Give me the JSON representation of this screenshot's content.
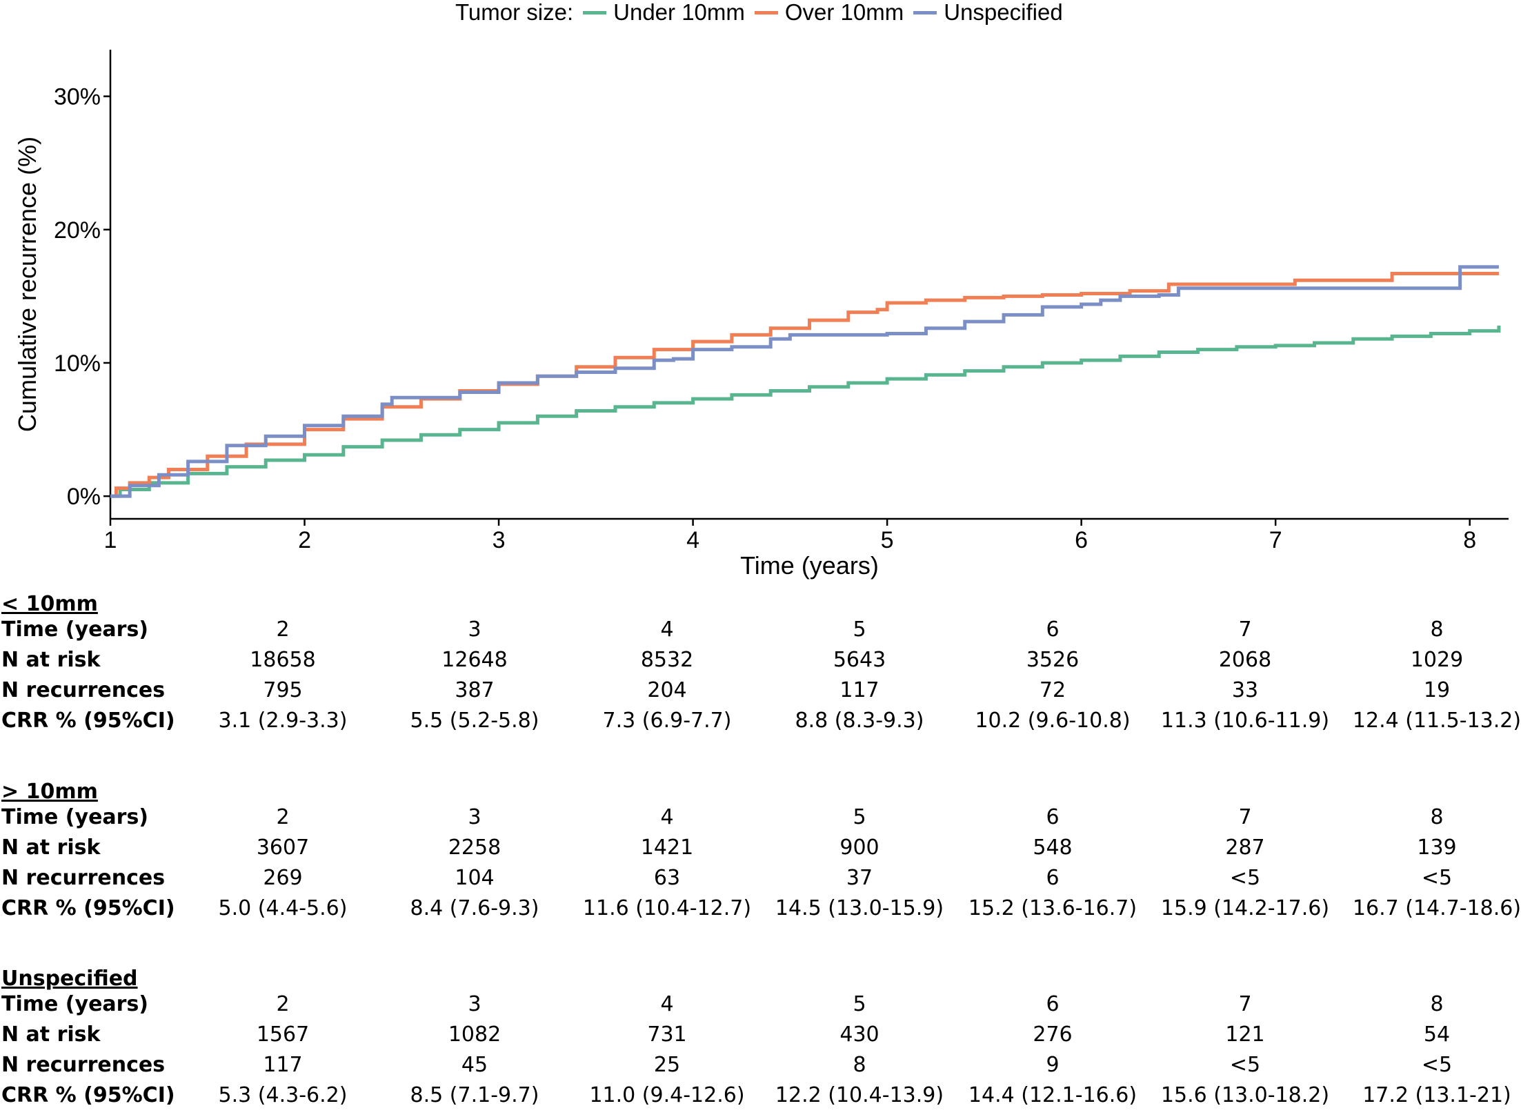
{
  "chart_data": {
    "type": "line",
    "title": "",
    "xlabel": "Time (years)",
    "ylabel": "Cumulative recurrence (%)",
    "xlim": [
      1,
      8.2
    ],
    "ylim": [
      -1.7,
      33.5
    ],
    "xticks": [
      1,
      2,
      3,
      4,
      5,
      6,
      7,
      8
    ],
    "yticks": [
      0,
      10,
      20,
      30
    ],
    "ytick_labels": [
      "0%",
      "10%",
      "20%",
      "30%"
    ],
    "grid": false,
    "legend": {
      "title": "Tumor size:",
      "position": "top"
    },
    "series": [
      {
        "name": "Under 10mm",
        "color": "#58b58f",
        "x": [
          1,
          1.05,
          1.2,
          1.4,
          1.6,
          1.8,
          2,
          2.2,
          2.4,
          2.6,
          2.8,
          3,
          3.2,
          3.4,
          3.6,
          3.8,
          4,
          4.2,
          4.4,
          4.6,
          4.8,
          5,
          5.2,
          5.4,
          5.6,
          5.8,
          6,
          6.2,
          6.4,
          6.6,
          6.8,
          7,
          7.2,
          7.4,
          7.6,
          7.8,
          8,
          8.15
        ],
        "y": [
          0,
          0.5,
          1.0,
          1.7,
          2.2,
          2.7,
          3.1,
          3.7,
          4.2,
          4.6,
          5.0,
          5.5,
          6.0,
          6.4,
          6.7,
          7.0,
          7.3,
          7.6,
          7.9,
          8.2,
          8.5,
          8.8,
          9.1,
          9.4,
          9.7,
          10.0,
          10.2,
          10.5,
          10.8,
          11.0,
          11.2,
          11.3,
          11.5,
          11.8,
          12.0,
          12.2,
          12.4,
          12.8
        ]
      },
      {
        "name": "Over 10mm",
        "color": "#f07f55",
        "x": [
          1,
          1.03,
          1.1,
          1.2,
          1.3,
          1.5,
          1.7,
          2,
          2.2,
          2.4,
          2.6,
          2.8,
          3,
          3.2,
          3.4,
          3.6,
          3.8,
          4,
          4.2,
          4.4,
          4.6,
          4.8,
          4.95,
          5,
          5.2,
          5.4,
          5.6,
          5.8,
          6,
          6.25,
          6.45,
          6.6,
          6.8,
          7,
          7.1,
          7.6,
          7.8,
          8,
          8.15
        ],
        "y": [
          0,
          0.6,
          1.0,
          1.4,
          2.0,
          3.0,
          3.9,
          5.0,
          5.8,
          6.7,
          7.3,
          7.9,
          8.4,
          9.0,
          9.7,
          10.4,
          11.0,
          11.6,
          12.1,
          12.6,
          13.2,
          13.8,
          14.0,
          14.5,
          14.7,
          14.9,
          15.0,
          15.1,
          15.2,
          15.4,
          15.9,
          15.9,
          15.9,
          15.9,
          16.2,
          16.7,
          16.7,
          16.7,
          16.7
        ]
      },
      {
        "name": "Unspecified",
        "color": "#7b8fc6",
        "x": [
          1,
          1.1,
          1.25,
          1.4,
          1.6,
          1.8,
          2,
          2.2,
          2.4,
          2.45,
          2.6,
          2.8,
          3,
          3.2,
          3.4,
          3.6,
          3.8,
          3.9,
          4,
          4.2,
          4.4,
          4.5,
          4.6,
          4.8,
          5,
          5.1,
          5.2,
          5.4,
          5.6,
          5.8,
          6,
          6.1,
          6.2,
          6.4,
          6.5,
          7,
          7.5,
          7.9,
          7.95,
          8.15
        ],
        "y": [
          0,
          0.8,
          1.6,
          2.6,
          3.8,
          4.5,
          5.3,
          6.0,
          6.9,
          7.4,
          7.4,
          7.8,
          8.5,
          9.0,
          9.3,
          9.6,
          10.2,
          10.3,
          11.0,
          11.2,
          11.8,
          12.1,
          12.1,
          12.1,
          12.2,
          12.2,
          12.6,
          13.1,
          13.6,
          14.2,
          14.4,
          14.7,
          15.0,
          15.1,
          15.6,
          15.6,
          15.6,
          15.6,
          17.2,
          17.2
        ]
      }
    ]
  },
  "risk_tables": [
    {
      "title": "< 10mm",
      "rows": [
        {
          "label": "Time (years)",
          "values": [
            "2",
            "3",
            "4",
            "5",
            "6",
            "7",
            "8"
          ]
        },
        {
          "label": "N at risk",
          "values": [
            "18658",
            "12648",
            "8532",
            "5643",
            "3526",
            "2068",
            "1029"
          ]
        },
        {
          "label": "N recurrences",
          "values": [
            "795",
            "387",
            "204",
            "117",
            "72",
            "33",
            "19"
          ]
        },
        {
          "label": "CRR % (95%CI)",
          "values": [
            "3.1 (2.9-3.3)",
            "5.5 (5.2-5.8)",
            "7.3 (6.9-7.7)",
            "8.8 (8.3-9.3)",
            "10.2 (9.6-10.8)",
            "11.3 (10.6-11.9)",
            "12.4 (11.5-13.2)"
          ]
        }
      ]
    },
    {
      "title": "> 10mm",
      "rows": [
        {
          "label": "Time (years)",
          "values": [
            "2",
            "3",
            "4",
            "5",
            "6",
            "7",
            "8"
          ]
        },
        {
          "label": "N at risk",
          "values": [
            "3607",
            "2258",
            "1421",
            "900",
            "548",
            "287",
            "139"
          ]
        },
        {
          "label": "N recurrences",
          "values": [
            "269",
            "104",
            "63",
            "37",
            "6",
            "<5",
            "<5"
          ]
        },
        {
          "label": "CRR % (95%CI)",
          "values": [
            "5.0 (4.4-5.6)",
            "8.4 (7.6-9.3)",
            "11.6 (10.4-12.7)",
            "14.5 (13.0-15.9)",
            "15.2 (13.6-16.7)",
            "15.9 (14.2-17.6)",
            "16.7 (14.7-18.6)"
          ]
        }
      ]
    },
    {
      "title": "Unspecified",
      "rows": [
        {
          "label": "Time (years)",
          "values": [
            "2",
            "3",
            "4",
            "5",
            "6",
            "7",
            "8"
          ]
        },
        {
          "label": "N at risk",
          "values": [
            "1567",
            "1082",
            "731",
            "430",
            "276",
            "121",
            "54"
          ]
        },
        {
          "label": "N recurrences",
          "values": [
            "117",
            "45",
            "25",
            "8",
            "9",
            "<5",
            "<5"
          ]
        },
        {
          "label": "CRR % (95%CI)",
          "values": [
            "5.3 (4.3-6.2)",
            "8.5 (7.1-9.7)",
            "11.0 (9.4-12.6)",
            "12.2 (10.4-13.9)",
            "14.4 (12.1-16.6)",
            "15.6 (13.0-18.2)",
            "17.2 (13.1-21)"
          ]
        }
      ]
    }
  ]
}
